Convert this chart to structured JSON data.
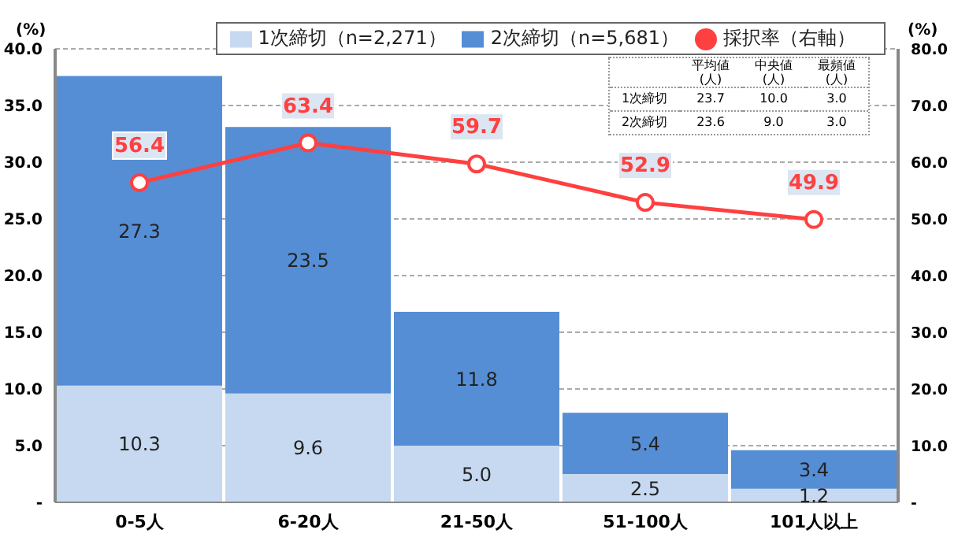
{
  "chart_data": [
    {
      "type": "bar",
      "stacked": true,
      "categories": [
        "0-5人",
        "6-20人",
        "21-50人",
        "51-100人",
        "101人以上"
      ],
      "series": [
        {
          "name": "1次締切（n=2,271）",
          "color": "#c6d9f1",
          "values": [
            10.3,
            9.6,
            5.0,
            2.5,
            1.2
          ],
          "value_labels": [
            "10.3",
            "9.6",
            "5.0",
            "2.5",
            "1.2"
          ]
        },
        {
          "name": "2次締切（n=5,681）",
          "color": "#558ed5",
          "values": [
            27.3,
            23.5,
            11.8,
            5.4,
            3.4
          ],
          "value_labels": [
            "27.3",
            "23.5",
            "11.8",
            "5.4",
            "3.4"
          ]
        },
        {
          "name": "採択率（右軸）",
          "type": "line",
          "axis": "y2",
          "color": "#ff4040",
          "marker": "circle",
          "values": [
            56.4,
            63.4,
            59.7,
            52.9,
            49.9
          ],
          "value_labels": [
            "56.4",
            "63.4",
            "59.7",
            "52.9",
            "49.9"
          ]
        }
      ],
      "ylabel": "(%)",
      "y2label": "(%)",
      "ylim": [
        0,
        40
      ],
      "yticks": [
        {
          "value": 0,
          "label": "-"
        },
        {
          "value": 5,
          "label": "5.0"
        },
        {
          "value": 10,
          "label": "10.0"
        },
        {
          "value": 15,
          "label": "15.0"
        },
        {
          "value": 20,
          "label": "20.0"
        },
        {
          "value": 25,
          "label": "25.0"
        },
        {
          "value": 30,
          "label": "30.0"
        },
        {
          "value": 35,
          "label": "35.0"
        },
        {
          "value": 40,
          "label": "40.0"
        }
      ],
      "y2lim": [
        0,
        80
      ],
      "y2ticks": [
        {
          "value": 0,
          "label": "-"
        },
        {
          "value": 10,
          "label": "10.0"
        },
        {
          "value": 20,
          "label": "20.0"
        },
        {
          "value": 30,
          "label": "30.0"
        },
        {
          "value": 40,
          "label": "40.0"
        },
        {
          "value": 50,
          "label": "50.0"
        },
        {
          "value": 60,
          "label": "60.0"
        },
        {
          "value": 70,
          "label": "70.0"
        },
        {
          "value": 80,
          "label": "80.0"
        }
      ],
      "grid": "y2",
      "legend": "top right",
      "data_labels": true
    },
    {
      "type": "other",
      "annotations": [
        "平均値",
        "中央値",
        "最頻値",
        "(人)",
        "(人)",
        "(人)",
        "1次締切",
        "23.7",
        "10.0",
        "3.0",
        "2次締切",
        "23.6",
        "9.0",
        "3.0"
      ]
    }
  ]
}
